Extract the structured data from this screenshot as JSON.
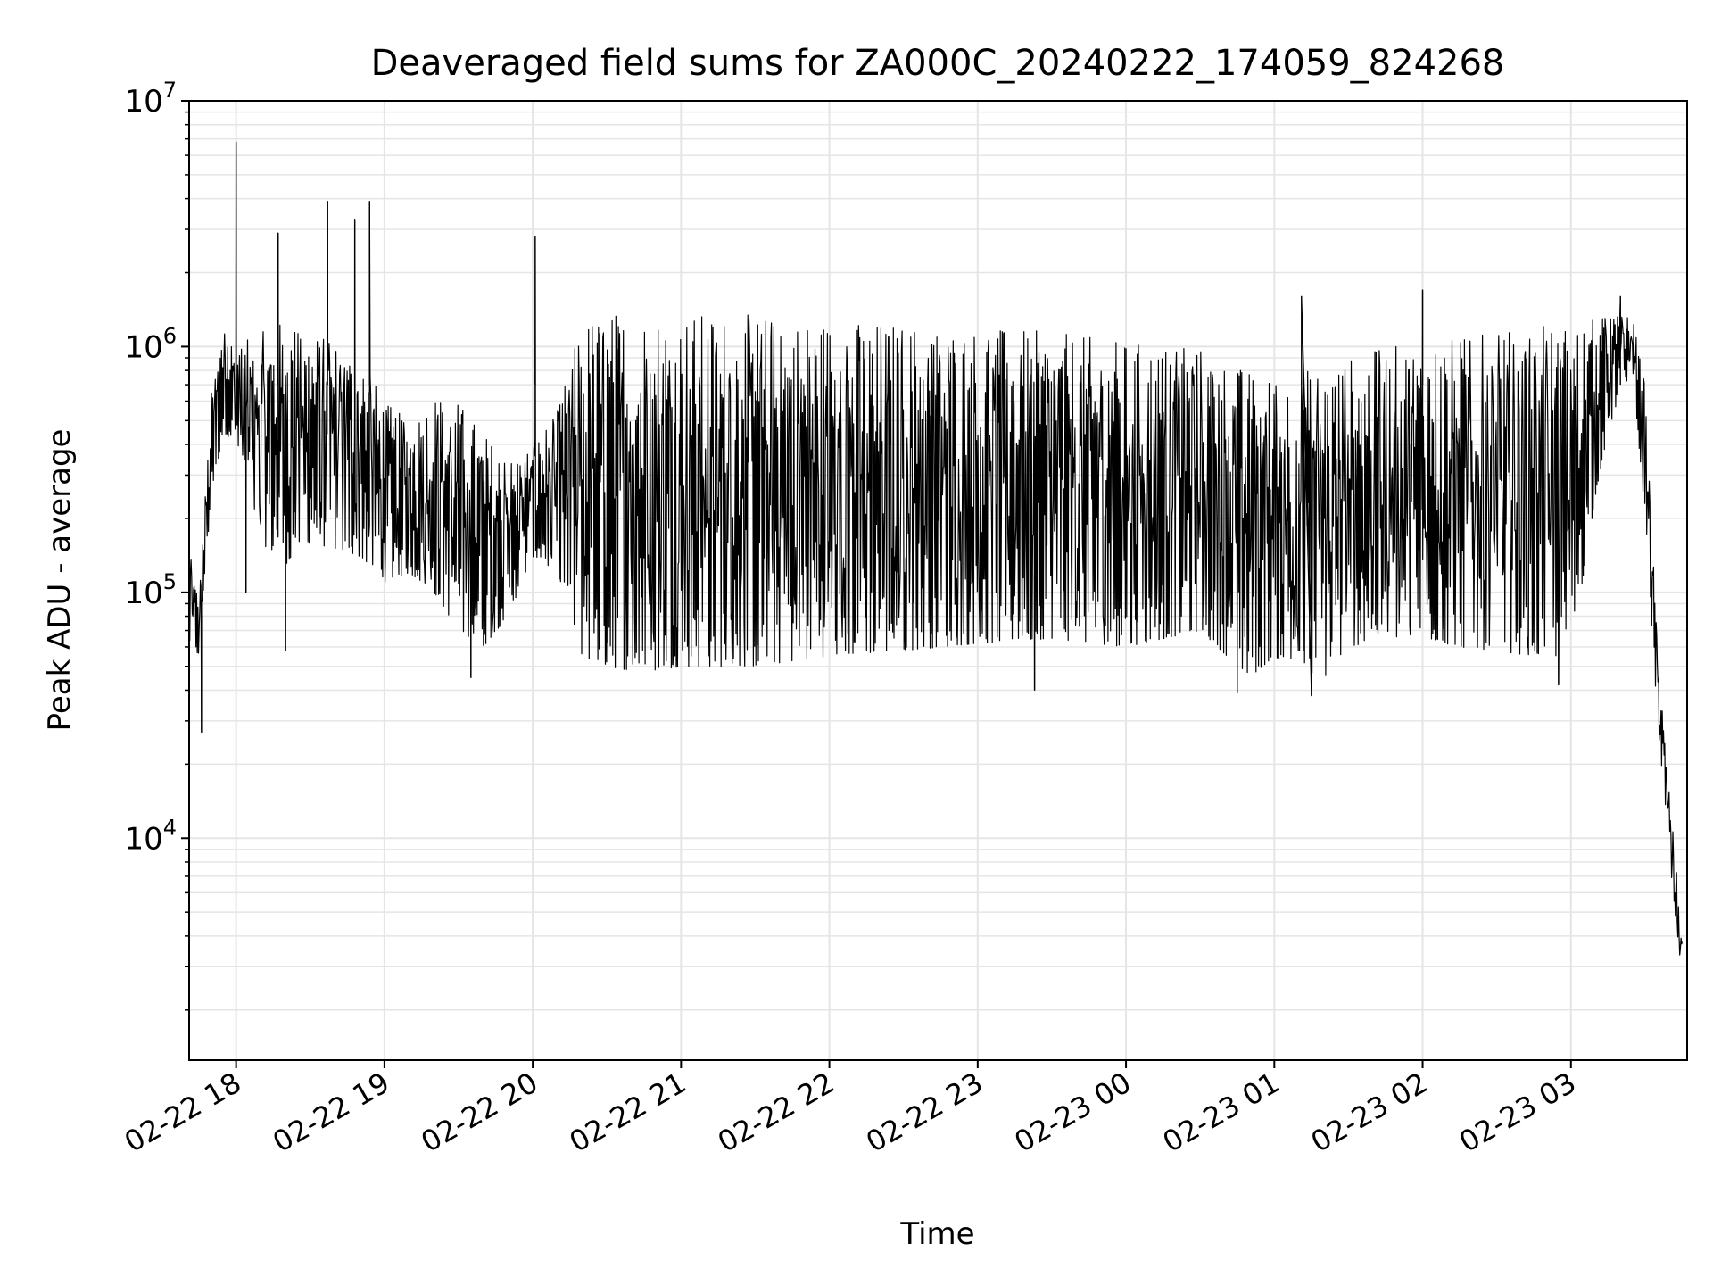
{
  "chart_data": {
    "type": "line",
    "title": "Deaveraged field sums for ZA000C_20240222_174059_824268",
    "xlabel": "Time",
    "ylabel": "Peak ADU - average",
    "yscale": "log",
    "ylim": [
      1250,
      10000000
    ],
    "xlim": [
      "2024-02-22 17:41",
      "2024-02-23 03:47"
    ],
    "grid": true,
    "line_color": "#000000",
    "grid_color": "#e5e5e5",
    "x_tick_values": [
      "2024-02-22 18:00",
      "2024-02-22 19:00",
      "2024-02-22 20:00",
      "2024-02-22 21:00",
      "2024-02-22 22:00",
      "2024-02-22 23:00",
      "2024-02-23 00:00",
      "2024-02-23 01:00",
      "2024-02-23 02:00",
      "2024-02-23 03:00"
    ],
    "x_tick_labels": [
      "02-22 18",
      "02-22 19",
      "02-22 20",
      "02-22 21",
      "02-22 22",
      "02-22 23",
      "02-23 00",
      "02-23 01",
      "02-23 02",
      "02-23 03"
    ],
    "y_ticks": [
      {
        "base": "10",
        "exp": "4",
        "value": 10000
      },
      {
        "base": "10",
        "exp": "5",
        "value": 100000
      },
      {
        "base": "10",
        "exp": "6",
        "value": 1000000
      },
      {
        "base": "10",
        "exp": "7",
        "value": 10000000
      }
    ],
    "series": [
      {
        "envelope": {
          "x": [
            "2024-02-22 17:41",
            "2024-02-22 17:45",
            "2024-02-22 17:50",
            "2024-02-22 17:55",
            "2024-02-22 18:00",
            "2024-02-22 18:10",
            "2024-02-22 18:20",
            "2024-02-22 18:30",
            "2024-02-22 18:40",
            "2024-02-22 18:50",
            "2024-02-22 19:00",
            "2024-02-22 19:10",
            "2024-02-22 19:20",
            "2024-02-22 19:30",
            "2024-02-22 19:40",
            "2024-02-22 19:50",
            "2024-02-22 20:00",
            "2024-02-22 20:10",
            "2024-02-22 20:20",
            "2024-02-22 20:30",
            "2024-02-22 20:40",
            "2024-02-22 20:50",
            "2024-02-22 21:00",
            "2024-02-22 21:30",
            "2024-02-22 22:00",
            "2024-02-22 22:30",
            "2024-02-22 23:00",
            "2024-02-22 23:30",
            "2024-02-23 00:00",
            "2024-02-23 00:30",
            "2024-02-23 00:50",
            "2024-02-23 01:00",
            "2024-02-23 01:10",
            "2024-02-23 01:20",
            "2024-02-23 01:30",
            "2024-02-23 01:45",
            "2024-02-23 02:00",
            "2024-02-23 02:15",
            "2024-02-23 02:30",
            "2024-02-23 02:45",
            "2024-02-23 03:00",
            "2024-02-23 03:10",
            "2024-02-23 03:15",
            "2024-02-23 03:20",
            "2024-02-23 03:25",
            "2024-02-23 03:30",
            "2024-02-23 03:35",
            "2024-02-23 03:40",
            "2024-02-23 03:45"
          ],
          "low": [
            60000,
            55000,
            250000,
            450000,
            400000,
            160000,
            130000,
            160000,
            150000,
            140000,
            110000,
            120000,
            100000,
            70000,
            60000,
            80000,
            140000,
            120000,
            55000,
            50000,
            48000,
            48000,
            50000,
            50000,
            55000,
            58000,
            62000,
            65000,
            60000,
            70000,
            45000,
            55000,
            48000,
            45000,
            60000,
            65000,
            65000,
            60000,
            58000,
            55000,
            55000,
            250000,
            450000,
            650000,
            800000,
            200000,
            30000,
            8000,
            2200
          ],
          "high": [
            150000,
            95000,
            650000,
            1300000,
            1000000,
            1150000,
            1300000,
            1150000,
            1050000,
            950000,
            600000,
            500000,
            650000,
            600000,
            450000,
            350000,
            400000,
            550000,
            1300000,
            1400000,
            1400000,
            1400000,
            1380000,
            1350000,
            1300000,
            1250000,
            1200000,
            1150000,
            1050000,
            1000000,
            800000,
            750000,
            800000,
            850000,
            900000,
            1000000,
            1050000,
            1100000,
            1150000,
            1200000,
            1250000,
            1300000,
            1350000,
            1400000,
            1300000,
            700000,
            60000,
            15000,
            4000
          ]
        },
        "spikes": [
          {
            "x": "2024-02-22 17:46",
            "y": 27000
          },
          {
            "x": "2024-02-22 18:00",
            "y": 6800000
          },
          {
            "x": "2024-02-22 18:04",
            "y": 100000
          },
          {
            "x": "2024-02-22 18:17",
            "y": 2900000
          },
          {
            "x": "2024-02-22 18:20",
            "y": 58000
          },
          {
            "x": "2024-02-22 18:37",
            "y": 3900000
          },
          {
            "x": "2024-02-22 18:48",
            "y": 3300000
          },
          {
            "x": "2024-02-22 18:54",
            "y": 3900000
          },
          {
            "x": "2024-02-22 19:35",
            "y": 45000
          },
          {
            "x": "2024-02-22 20:01",
            "y": 2800000
          },
          {
            "x": "2024-02-22 23:23",
            "y": 40000
          },
          {
            "x": "2024-02-23 00:45",
            "y": 39000
          },
          {
            "x": "2024-02-23 01:15",
            "y": 38000
          },
          {
            "x": "2024-02-23 01:11",
            "y": 1600000
          },
          {
            "x": "2024-02-23 02:00",
            "y": 1700000
          },
          {
            "x": "2024-02-23 02:55",
            "y": 42000
          },
          {
            "x": "2024-02-23 03:20",
            "y": 1600000
          }
        ]
      }
    ]
  }
}
